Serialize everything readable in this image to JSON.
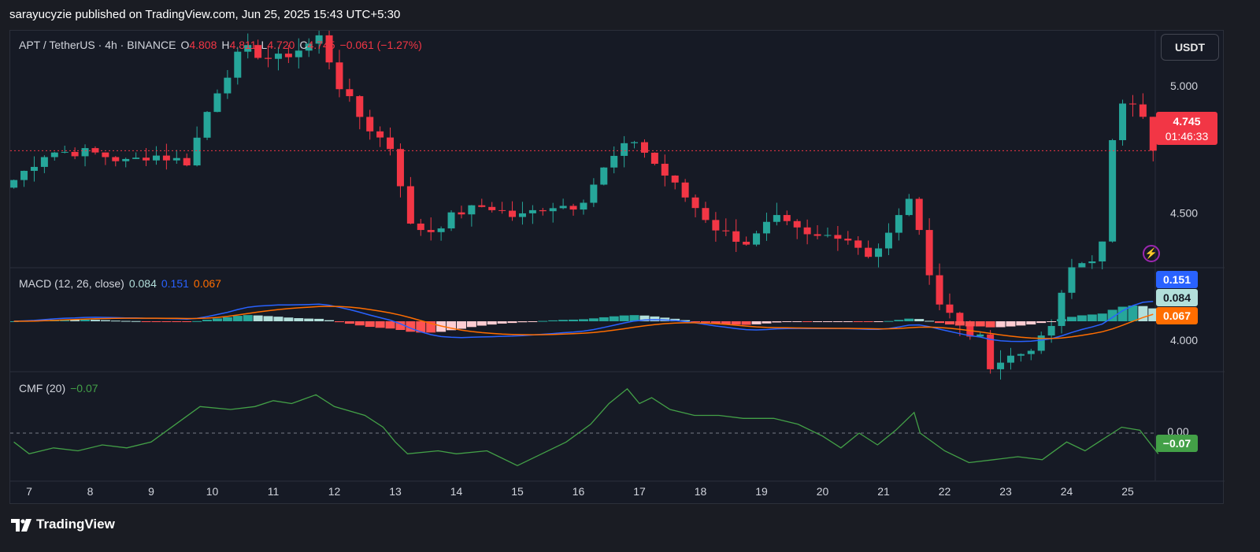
{
  "header": {
    "published": "sarayucyzie published on TradingView.com, Jun 25, 2025 15:43 UTC+5:30"
  },
  "footer": {
    "brand": "TradingView"
  },
  "colors": {
    "up": "#26a69a",
    "down": "#f23645",
    "macd_line": "#2962ff",
    "signal_line": "#ff6d00",
    "cmf_line": "#43a047",
    "hist_up_strong": "#26a69a",
    "hist_up_weak": "#b2dfdb",
    "hist_down_strong": "#ff5252",
    "hist_down_weak": "#ffcdd2",
    "background": "#161a25"
  },
  "price_panel": {
    "symbol": "APT / TetherUS · 4h · BINANCE",
    "o_label": "O",
    "o_value": "4.808",
    "h_label": "H",
    "h_value": "4.811",
    "l_label": "L",
    "l_value": "4.720",
    "c_label": "C",
    "c_value": "4.745",
    "change": "−0.061 (−1.27%)",
    "currency_button": "USDT",
    "last_price": "4.745",
    "countdown": "01:46:33",
    "y_ticks": [
      "5.000",
      "4.500",
      "4.000"
    ]
  },
  "macd_panel": {
    "name": "MACD (12, 26, close)",
    "hist_value": "0.084",
    "macd_value": "0.151",
    "signal_value": "0.067",
    "hist_label": "0.084",
    "macd_label": "0.151",
    "signal_label": "0.067"
  },
  "cmf_panel": {
    "name": "CMF (20)",
    "value": "−0.07",
    "zero_tick": "0.00",
    "value_label": "−0.07"
  },
  "x_axis": {
    "labels": [
      "7",
      "8",
      "9",
      "10",
      "11",
      "12",
      "13",
      "14",
      "15",
      "16",
      "17",
      "18",
      "19",
      "20",
      "21",
      "22",
      "23",
      "24",
      "25"
    ]
  },
  "chart_data": {
    "type": "candlestick",
    "title": "APT / TetherUS · 4h · BINANCE",
    "x_labels": [
      "7",
      "8",
      "9",
      "10",
      "11",
      "12",
      "13",
      "14",
      "15",
      "16",
      "17",
      "18",
      "19",
      "20",
      "21",
      "22",
      "23",
      "24",
      "25"
    ],
    "y_ticks": [
      4.0,
      4.5,
      5.0
    ],
    "price_anchors": [
      {
        "day": 6.75,
        "close": 4.63
      },
      {
        "day": 7.3,
        "close": 4.74
      },
      {
        "day": 8.0,
        "close": 4.74
      },
      {
        "day": 8.6,
        "close": 4.7
      },
      {
        "day": 9.0,
        "close": 4.73
      },
      {
        "day": 9.6,
        "close": 4.7
      },
      {
        "day": 10.0,
        "close": 4.95
      },
      {
        "day": 10.5,
        "close": 5.15
      },
      {
        "day": 11.0,
        "close": 5.1
      },
      {
        "day": 11.5,
        "close": 5.15
      },
      {
        "day": 11.8,
        "close": 5.2
      },
      {
        "day": 12.0,
        "close": 5.03
      },
      {
        "day": 12.5,
        "close": 4.85
      },
      {
        "day": 13.0,
        "close": 4.74
      },
      {
        "day": 13.2,
        "close": 4.45
      },
      {
        "day": 13.6,
        "close": 4.43
      },
      {
        "day": 14.0,
        "close": 4.5
      },
      {
        "day": 14.5,
        "close": 4.53
      },
      {
        "day": 15.0,
        "close": 4.48
      },
      {
        "day": 15.5,
        "close": 4.53
      },
      {
        "day": 16.0,
        "close": 4.53
      },
      {
        "day": 16.5,
        "close": 4.7
      },
      {
        "day": 16.9,
        "close": 4.79
      },
      {
        "day": 17.3,
        "close": 4.68
      },
      {
        "day": 17.8,
        "close": 4.55
      },
      {
        "day": 18.3,
        "close": 4.43
      },
      {
        "day": 18.8,
        "close": 4.38
      },
      {
        "day": 19.2,
        "close": 4.48
      },
      {
        "day": 19.8,
        "close": 4.4
      },
      {
        "day": 20.3,
        "close": 4.42
      },
      {
        "day": 20.8,
        "close": 4.33
      },
      {
        "day": 21.2,
        "close": 4.45
      },
      {
        "day": 21.4,
        "close": 4.58
      },
      {
        "day": 21.6,
        "close": 4.4
      },
      {
        "day": 21.9,
        "close": 4.15
      },
      {
        "day": 22.3,
        "close": 4.05
      },
      {
        "day": 22.6,
        "close": 4.0
      },
      {
        "day": 22.8,
        "close": 3.85
      },
      {
        "day": 23.0,
        "close": 3.93
      },
      {
        "day": 23.3,
        "close": 3.95
      },
      {
        "day": 23.8,
        "close": 4.05
      },
      {
        "day": 24.0,
        "close": 4.3
      },
      {
        "day": 24.3,
        "close": 4.32
      },
      {
        "day": 24.55,
        "close": 4.28
      },
      {
        "day": 24.7,
        "close": 4.73
      },
      {
        "day": 24.85,
        "close": 4.88
      },
      {
        "day": 25.0,
        "close": 4.96
      },
      {
        "day": 25.15,
        "close": 4.92
      },
      {
        "day": 25.35,
        "close": 4.81
      },
      {
        "day": 25.5,
        "close": 4.745
      }
    ],
    "last_close": 4.745,
    "macd": {
      "fast": 12,
      "slow": 26,
      "source": "close",
      "last": {
        "histogram": 0.084,
        "macd": 0.151,
        "signal": 0.067
      }
    },
    "cmf": {
      "length": 20,
      "last": -0.07,
      "points": [
        {
          "day": 6.75,
          "value": -0.03
        },
        {
          "day": 7.0,
          "value": -0.07
        },
        {
          "day": 7.4,
          "value": -0.05
        },
        {
          "day": 7.8,
          "value": -0.06
        },
        {
          "day": 8.2,
          "value": -0.04
        },
        {
          "day": 8.6,
          "value": -0.05
        },
        {
          "day": 9.0,
          "value": -0.03
        },
        {
          "day": 9.4,
          "value": 0.03
        },
        {
          "day": 9.8,
          "value": 0.09
        },
        {
          "day": 10.3,
          "value": 0.08
        },
        {
          "day": 10.7,
          "value": 0.09
        },
        {
          "day": 11.0,
          "value": 0.11
        },
        {
          "day": 11.3,
          "value": 0.1
        },
        {
          "day": 11.7,
          "value": 0.13
        },
        {
          "day": 12.0,
          "value": 0.09
        },
        {
          "day": 12.5,
          "value": 0.06
        },
        {
          "day": 12.8,
          "value": 0.02
        },
        {
          "day": 13.0,
          "value": -0.03
        },
        {
          "day": 13.2,
          "value": -0.07
        },
        {
          "day": 13.7,
          "value": -0.06
        },
        {
          "day": 14.0,
          "value": -0.07
        },
        {
          "day": 14.5,
          "value": -0.06
        },
        {
          "day": 15.0,
          "value": -0.11
        },
        {
          "day": 15.4,
          "value": -0.07
        },
        {
          "day": 15.8,
          "value": -0.03
        },
        {
          "day": 16.2,
          "value": 0.03
        },
        {
          "day": 16.5,
          "value": 0.1
        },
        {
          "day": 16.8,
          "value": 0.15
        },
        {
          "day": 17.0,
          "value": 0.1
        },
        {
          "day": 17.2,
          "value": 0.12
        },
        {
          "day": 17.5,
          "value": 0.08
        },
        {
          "day": 17.9,
          "value": 0.06
        },
        {
          "day": 18.3,
          "value": 0.06
        },
        {
          "day": 18.7,
          "value": 0.05
        },
        {
          "day": 19.2,
          "value": 0.05
        },
        {
          "day": 19.6,
          "value": 0.03
        },
        {
          "day": 20.0,
          "value": -0.01
        },
        {
          "day": 20.3,
          "value": -0.05
        },
        {
          "day": 20.6,
          "value": 0.0
        },
        {
          "day": 20.9,
          "value": -0.04
        },
        {
          "day": 21.2,
          "value": 0.01
        },
        {
          "day": 21.5,
          "value": 0.07
        },
        {
          "day": 21.6,
          "value": 0.0
        },
        {
          "day": 22.0,
          "value": -0.06
        },
        {
          "day": 22.4,
          "value": -0.1
        },
        {
          "day": 22.8,
          "value": -0.09
        },
        {
          "day": 23.2,
          "value": -0.08
        },
        {
          "day": 23.6,
          "value": -0.09
        },
        {
          "day": 24.0,
          "value": -0.03
        },
        {
          "day": 24.3,
          "value": -0.06
        },
        {
          "day": 24.6,
          "value": -0.02
        },
        {
          "day": 24.9,
          "value": 0.02
        },
        {
          "day": 25.2,
          "value": 0.01
        },
        {
          "day": 25.5,
          "value": -0.07
        }
      ]
    }
  }
}
